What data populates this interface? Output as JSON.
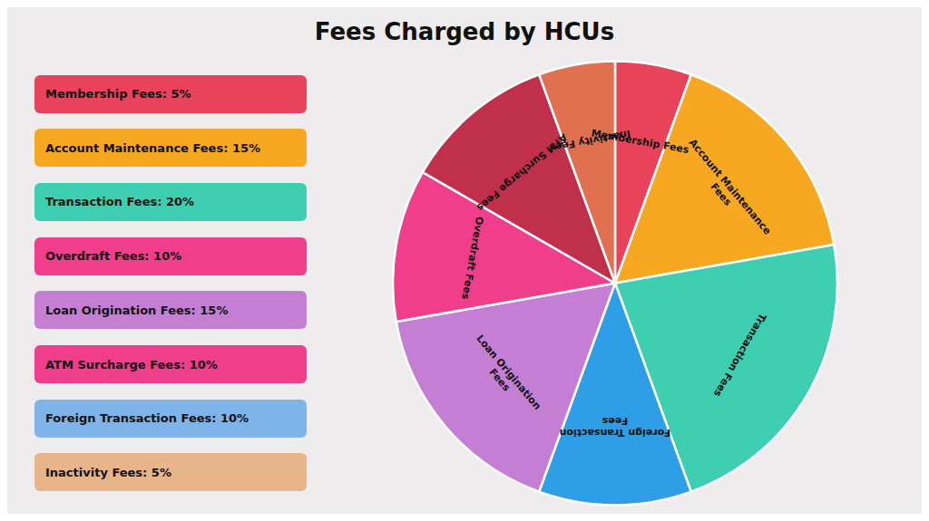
{
  "chart_data": {
    "type": "pie",
    "title": "Fees Charged by HCUs",
    "background_color": "#eeecec",
    "categories": [
      "Membership Fees",
      "Account Maintenance\nFees",
      "Transaction Fees",
      "Foreign Transaction\nFees",
      "Loan Origination\nFees",
      "Overdraft Fees",
      "ATM Surcharge Fees",
      "Inactivity Fees"
    ],
    "values": [
      5,
      15,
      20,
      10,
      15,
      10,
      10,
      5
    ],
    "colors": [
      "#E8435A",
      "#F5A820",
      "#3ECFB2",
      "#2E9FE6",
      "#C47FD4",
      "#F03E8A",
      "#C0304A",
      "#E07050"
    ],
    "legend_labels": [
      "Membership Fees: 5%",
      "Account Maintenance Fees: 15%",
      "Transaction Fees: 20%",
      "Overdraft Fees: 10%",
      "Loan Origination Fees: 15%",
      "ATM Surcharge Fees: 10%",
      "Foreign Transaction Fees: 10%",
      "Inactivity Fees: 5%"
    ],
    "legend_colors": [
      "#E8435A",
      "#F5A820",
      "#3ECFB2",
      "#F03E8A",
      "#C47FD4",
      "#F03E8A",
      "#7EB4E8",
      "#E8B48A"
    ]
  }
}
